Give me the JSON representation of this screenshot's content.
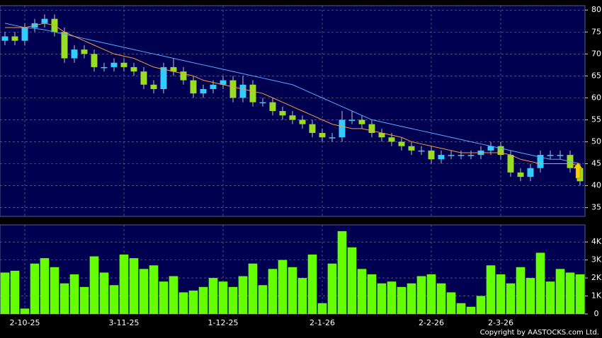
{
  "chart_data": {
    "type": "candlestick",
    "categories": [
      null,
      null,
      "2-10-25",
      null,
      null,
      null,
      null,
      null,
      null,
      null,
      null,
      null,
      "3-11-25",
      null,
      null,
      null,
      null,
      null,
      null,
      null,
      null,
      null,
      "1-12-25",
      null,
      null,
      null,
      null,
      null,
      null,
      null,
      null,
      null,
      "2-1-26",
      null,
      null,
      null,
      null,
      null,
      null,
      null,
      null,
      null,
      null,
      "2-2-26",
      null,
      null,
      null,
      null,
      null,
      null,
      "2-3-26",
      null,
      null,
      null,
      null,
      null,
      null,
      null,
      null
    ],
    "open": [
      73,
      74,
      73,
      76,
      77,
      78,
      75,
      69,
      71,
      70,
      67,
      67,
      68,
      67,
      66,
      63,
      62,
      67,
      66,
      64,
      61,
      62,
      63,
      64,
      60,
      63,
      59,
      59,
      57,
      56,
      55,
      54,
      52,
      51,
      51,
      55,
      55,
      54,
      52,
      51,
      50,
      49,
      48,
      48,
      46,
      47,
      47,
      47,
      47,
      48,
      49,
      47,
      43,
      42,
      44,
      47,
      47,
      47,
      44
    ],
    "high": [
      75,
      75,
      77,
      78,
      79,
      79,
      76,
      72,
      72,
      71,
      68,
      69,
      69,
      68,
      67,
      64,
      68,
      69,
      67,
      65,
      63,
      64,
      65,
      65,
      65,
      64,
      60,
      60,
      58,
      57,
      56,
      55,
      53,
      52,
      57,
      57,
      56,
      55,
      53,
      52,
      51,
      50,
      49,
      49,
      48,
      48,
      48,
      48,
      49,
      50,
      50,
      48,
      44,
      45,
      48,
      48,
      48,
      48,
      45
    ],
    "low": [
      72,
      72,
      72,
      75,
      76,
      74,
      68,
      68,
      69,
      66,
      66,
      66,
      66,
      65,
      62,
      61,
      61,
      65,
      63,
      60,
      60,
      61,
      62,
      59,
      59,
      58,
      58,
      56,
      55,
      54,
      53,
      51,
      50,
      50,
      50,
      54,
      53,
      51,
      50,
      49,
      48,
      47,
      47,
      45,
      45,
      46,
      46,
      46,
      46,
      47,
      46,
      42,
      41,
      41,
      43,
      46,
      46,
      43,
      40
    ],
    "close": [
      74,
      73,
      76,
      77,
      78,
      75,
      69,
      71,
      70,
      67,
      67,
      68,
      67,
      66,
      63,
      62,
      67,
      66,
      64,
      61,
      62,
      63,
      64,
      60,
      63,
      59,
      59,
      57,
      56,
      55,
      54,
      52,
      51,
      51,
      55,
      55,
      54,
      52,
      51,
      50,
      49,
      48,
      48,
      46,
      47,
      47,
      47,
      47,
      48,
      49,
      47,
      43,
      42,
      44,
      47,
      47,
      47,
      44,
      41
    ],
    "up_color": "#33ccff",
    "down_color": "#99dd22",
    "lines": [
      {
        "color": "#55aaff",
        "values": [
          77,
          76.5,
          76,
          75.8,
          75.5,
          75,
          74.5,
          74,
          73.5,
          73,
          72.5,
          72,
          71.5,
          71,
          70.5,
          70,
          69.5,
          69,
          68.5,
          68,
          67.5,
          67,
          66.5,
          66,
          65.5,
          65,
          64.5,
          64,
          63.5,
          63,
          62,
          61,
          60,
          59,
          58,
          57,
          56,
          55,
          54.5,
          54,
          53.5,
          53,
          52.5,
          52,
          51.5,
          51,
          50.5,
          50,
          49.5,
          49,
          48.5,
          48,
          47.5,
          47,
          46.5,
          46,
          46,
          45.5,
          45
        ]
      },
      {
        "color": "#ff9933",
        "values": [
          76,
          76,
          76,
          76.5,
          77,
          76.5,
          75,
          74,
          73,
          72,
          71,
          70,
          69.5,
          69,
          68,
          67,
          66.5,
          66,
          65.5,
          65,
          64,
          63.5,
          63,
          62.5,
          62,
          61.5,
          61,
          60,
          59,
          58,
          57,
          56,
          55,
          54,
          53.5,
          53,
          53,
          52.5,
          52,
          51.5,
          51,
          50,
          49.5,
          49,
          48.5,
          48,
          47.5,
          47.5,
          47.5,
          47.5,
          47.5,
          47,
          46,
          45.5,
          45,
          45,
          45,
          45,
          44.5
        ]
      }
    ],
    "ylim": [
      33,
      81
    ],
    "yticks": [
      35,
      40,
      45,
      50,
      55,
      60,
      65,
      70,
      75,
      80
    ],
    "grid": true,
    "volume": {
      "color": "#66ff00",
      "values": [
        2300,
        2400,
        300,
        2800,
        3100,
        2600,
        1700,
        2200,
        1500,
        3200,
        2300,
        1600,
        3300,
        3100,
        2500,
        2700,
        1800,
        2100,
        1200,
        1300,
        1500,
        2000,
        1800,
        1500,
        2100,
        2800,
        1600,
        2500,
        3000,
        2600,
        2000,
        3300,
        600,
        2800,
        4600,
        3700,
        2500,
        2200,
        1700,
        1800,
        1500,
        1700,
        2100,
        2200,
        1700,
        1200,
        600,
        400,
        1000,
        2700,
        2200,
        1700,
        2600,
        2000,
        3400,
        1800,
        2500,
        2300,
        2200
      ],
      "ylim": [
        0,
        4950
      ],
      "yticks": [
        0,
        {
          "value": 1000,
          "label": "1K"
        },
        {
          "value": 2000,
          "label": "2K"
        },
        {
          "value": 3000,
          "label": "3K"
        },
        {
          "value": 4000,
          "label": "4K"
        }
      ]
    },
    "copyright": "Copyright by AASTOCKS.com Ltd."
  }
}
